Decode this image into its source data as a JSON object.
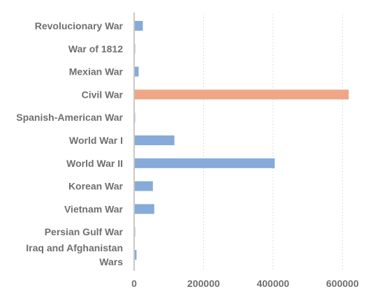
{
  "chart_data": {
    "type": "bar",
    "orientation": "horizontal",
    "categories": [
      [
        "Revolucionary War"
      ],
      [
        "War of 1812"
      ],
      [
        "Mexian War"
      ],
      [
        "Civil War"
      ],
      [
        "Spanish-American War"
      ],
      [
        "World War I"
      ],
      [
        "World War II"
      ],
      [
        "Korean War"
      ],
      [
        "Vietnam War"
      ],
      [
        "Persian Gulf War"
      ],
      [
        "Iraq and Afghanistan",
        "Wars"
      ]
    ],
    "values": [
      25000,
      2000,
      13000,
      618000,
      2500,
      116000,
      405000,
      54000,
      58000,
      300,
      7000
    ],
    "highlight_index": 3,
    "colors": {
      "bar": "#86abd8",
      "highlight": "#eea687",
      "axis": "#c8c8c8",
      "grid": "#d4d4d4"
    },
    "xlim": [
      0,
      690000
    ],
    "xticks": [
      0,
      200000,
      400000,
      600000
    ],
    "grid": "vertical-dotted",
    "title": "",
    "xlabel": "",
    "ylabel": ""
  }
}
